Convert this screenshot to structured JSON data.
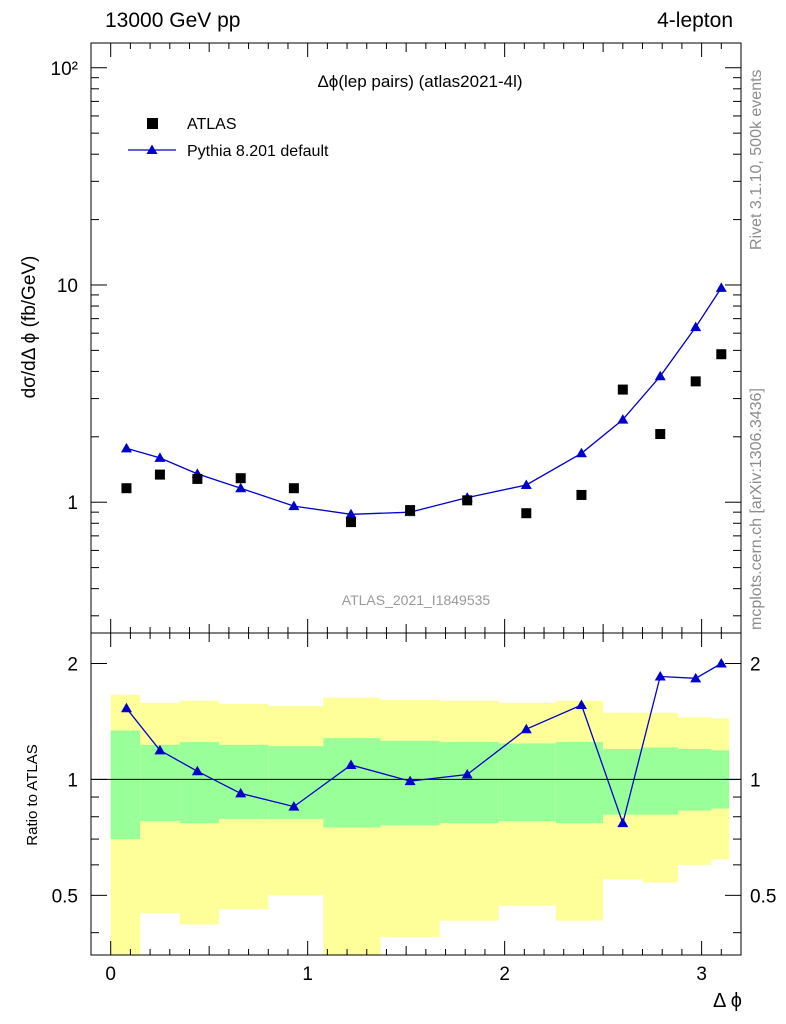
{
  "header": {
    "energy_label": "13000 GeV pp",
    "process_label": "4-lepton"
  },
  "side_labels": {
    "rivet": "Rivet 3.1.10,  500k events",
    "mcplots": "mcplots.cern.ch [arXiv:1306.3436]"
  },
  "chart_data": [
    {
      "type": "scatter",
      "title": "Δϕ(lep pairs) (atlas2021-4l)",
      "ylabel": "dσ/dΔ ϕ (fb/GeV)",
      "xlabel": "Δ ϕ",
      "watermark": "ATLAS_2021_I1849535",
      "yscale": "log",
      "xlim": [
        -0.1,
        3.2
      ],
      "ylim": [
        0.25,
        130
      ],
      "x_ticks": [
        "0",
        "1",
        "2",
        "3"
      ],
      "y_ticks": [
        "1",
        "10",
        "10²"
      ],
      "legend_placement": "top-left",
      "series": [
        {
          "name": "ATLAS",
          "marker": "square",
          "color": "#000000",
          "x": [
            0.08,
            0.25,
            0.44,
            0.66,
            0.93,
            1.22,
            1.52,
            1.81,
            2.11,
            2.39,
            2.6,
            2.79,
            2.97,
            3.1
          ],
          "y": [
            1.16,
            1.34,
            1.28,
            1.29,
            1.16,
            0.81,
            0.92,
            1.02,
            0.89,
            1.08,
            3.3,
            2.06,
            3.6,
            4.8
          ]
        },
        {
          "name": "Pythia 8.201 default",
          "marker": "triangle",
          "color": "#0000cc",
          "x": [
            0.08,
            0.25,
            0.44,
            0.66,
            0.93,
            1.22,
            1.52,
            1.81,
            2.11,
            2.39,
            2.6,
            2.79,
            2.97,
            3.1
          ],
          "y": [
            1.77,
            1.6,
            1.35,
            1.16,
            0.96,
            0.88,
            0.9,
            1.05,
            1.2,
            1.68,
            2.4,
            3.8,
            6.4,
            9.7
          ]
        }
      ]
    },
    {
      "type": "line",
      "ylabel": "Ratio to ATLAS",
      "xlim": [
        -0.1,
        3.2
      ],
      "ylim": [
        0.35,
        2.4
      ],
      "x_ticks": [
        "0",
        "1",
        "2",
        "3"
      ],
      "y_ticks": [
        "0.5",
        "1",
        "2"
      ],
      "reference_line": 1,
      "bins": [
        {
          "x_lo": 0.0,
          "x_hi": 0.15,
          "inner_lo": 0.7,
          "inner_hi": 1.34,
          "outer_lo": 0.35,
          "outer_hi": 1.66
        },
        {
          "x_lo": 0.15,
          "x_hi": 0.35,
          "inner_lo": 0.78,
          "inner_hi": 1.23,
          "outer_lo": 0.45,
          "outer_hi": 1.58
        },
        {
          "x_lo": 0.35,
          "x_hi": 0.55,
          "inner_lo": 0.77,
          "inner_hi": 1.25,
          "outer_lo": 0.42,
          "outer_hi": 1.6
        },
        {
          "x_lo": 0.55,
          "x_hi": 0.8,
          "inner_lo": 0.79,
          "inner_hi": 1.23,
          "outer_lo": 0.46,
          "outer_hi": 1.57
        },
        {
          "x_lo": 0.8,
          "x_hi": 1.08,
          "inner_lo": 0.79,
          "inner_hi": 1.22,
          "outer_lo": 0.5,
          "outer_hi": 1.55
        },
        {
          "x_lo": 1.08,
          "x_hi": 1.37,
          "inner_lo": 0.75,
          "inner_hi": 1.28,
          "outer_lo": 0.35,
          "outer_hi": 1.63
        },
        {
          "x_lo": 1.37,
          "x_hi": 1.67,
          "inner_lo": 0.76,
          "inner_hi": 1.26,
          "outer_lo": 0.39,
          "outer_hi": 1.61
        },
        {
          "x_lo": 1.67,
          "x_hi": 1.97,
          "inner_lo": 0.77,
          "inner_hi": 1.25,
          "outer_lo": 0.43,
          "outer_hi": 1.6
        },
        {
          "x_lo": 1.97,
          "x_hi": 2.26,
          "inner_lo": 0.78,
          "inner_hi": 1.24,
          "outer_lo": 0.47,
          "outer_hi": 1.58
        },
        {
          "x_lo": 2.26,
          "x_hi": 2.5,
          "inner_lo": 0.77,
          "inner_hi": 1.25,
          "outer_lo": 0.43,
          "outer_hi": 1.6
        },
        {
          "x_lo": 2.5,
          "x_hi": 2.7,
          "inner_lo": 0.81,
          "inner_hi": 1.2,
          "outer_lo": 0.55,
          "outer_hi": 1.49
        },
        {
          "x_lo": 2.7,
          "x_hi": 2.88,
          "inner_lo": 0.81,
          "inner_hi": 1.21,
          "outer_lo": 0.54,
          "outer_hi": 1.49
        },
        {
          "x_lo": 2.88,
          "x_hi": 3.05,
          "inner_lo": 0.83,
          "inner_hi": 1.2,
          "outer_lo": 0.6,
          "outer_hi": 1.45
        },
        {
          "x_lo": 3.05,
          "x_hi": 3.14,
          "inner_lo": 0.84,
          "inner_hi": 1.19,
          "outer_lo": 0.62,
          "outer_hi": 1.44
        }
      ],
      "series": [
        {
          "name": "Pythia 8.201 default",
          "color": "#0000cc",
          "x": [
            0.08,
            0.25,
            0.44,
            0.66,
            0.93,
            1.22,
            1.52,
            1.81,
            2.11,
            2.39,
            2.6,
            2.79,
            2.97,
            3.1
          ],
          "y": [
            1.53,
            1.19,
            1.05,
            0.92,
            0.85,
            1.09,
            0.99,
            1.03,
            1.35,
            1.56,
            0.77,
            1.85,
            1.83,
            2.0
          ]
        }
      ]
    }
  ],
  "colors": {
    "band_outer": "#ffff99",
    "band_inner": "#99ff99",
    "data": "#000000",
    "mc": "#0000cc",
    "side_text": "#8c8c8c",
    "watermark": "#999999"
  }
}
